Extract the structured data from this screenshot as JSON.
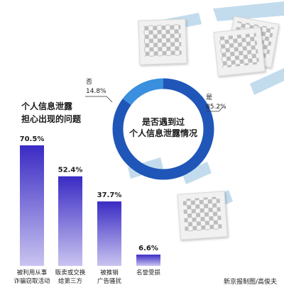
{
  "chart_data": [
    {
      "type": "bar",
      "title": "个人信息泄露\n担心出现的问题",
      "categories": [
        "被利用从事\n诈骗窃取活动",
        "贩卖或交换\n给第三方",
        "被推销\n广告骚扰",
        "名誉受损"
      ],
      "values": [
        70.5,
        52.4,
        37.7,
        6.6
      ],
      "value_labels": [
        "70.5%",
        "52.4%",
        "37.7%",
        "6.6%"
      ],
      "unit": "%",
      "ylim": [
        0,
        70.5
      ],
      "grid": false,
      "gradient": {
        "top": "#3a2bc4",
        "bottom": "#c9c4f0"
      }
    },
    {
      "type": "pie",
      "style": "donut",
      "title": "是否遇到过\n个人信息泄露情况",
      "slices": [
        {
          "label": "是",
          "value": 85.2,
          "display": "85.2%",
          "color": "#1f56b8"
        },
        {
          "label": "否",
          "value": 14.8,
          "display": "14.8%",
          "color": "#3a8fde"
        }
      ]
    }
  ],
  "decor": {
    "photo_frame_count": 4,
    "tape_color": "#b9d6ea",
    "frame_color": "#f1f1f1",
    "checker_dark": "#bdbdbd",
    "checker_light": "#f4f4f4"
  },
  "credit": "新京报制图/高俊夫"
}
